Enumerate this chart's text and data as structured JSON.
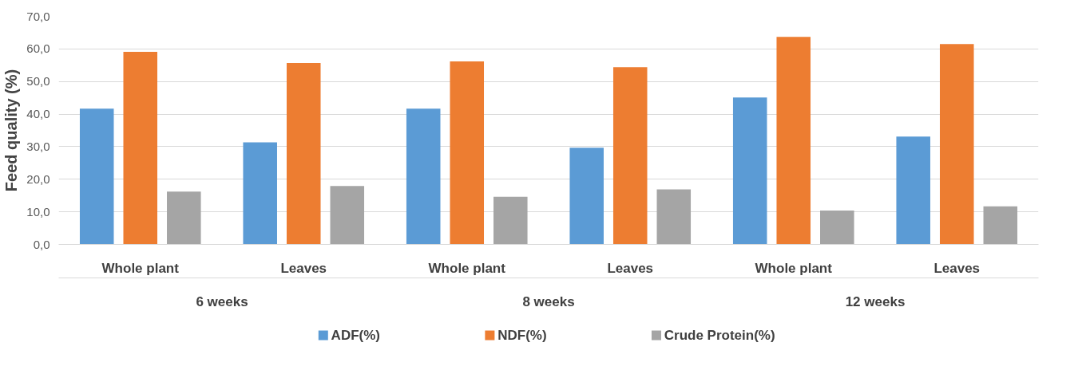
{
  "chart_data": {
    "type": "bar",
    "ylabel": "Feed quality (%)",
    "categories": [
      "Whole plant",
      "Leaves",
      "Whole plant",
      "Leaves",
      "Whole plant",
      "Leaves"
    ],
    "annotations": [
      "6 weeks",
      "8 weeks",
      "12 weeks"
    ],
    "series": [
      {
        "name": "ADF(%)",
        "color": "#5b9bd5",
        "values": [
          41.7,
          31.3,
          41.7,
          29.7,
          45.1,
          33.1
        ]
      },
      {
        "name": "NDF(%)",
        "color": "#ed7d31",
        "values": [
          59.1,
          55.7,
          56.2,
          54.4,
          63.7,
          61.5
        ]
      },
      {
        "name": "Crude Protein(%)",
        "color": "#a5a5a5",
        "values": [
          16.2,
          17.9,
          14.6,
          16.9,
          10.4,
          11.7
        ]
      }
    ],
    "ylim": [
      0,
      70
    ],
    "yticks": [
      {
        "value": 0,
        "label": "0,0"
      },
      {
        "value": 10,
        "label": "10,0"
      },
      {
        "value": 20,
        "label": "20,0"
      },
      {
        "value": 30,
        "label": "30,0"
      },
      {
        "value": 40,
        "label": "40,0"
      },
      {
        "value": 50,
        "label": "50,0"
      },
      {
        "value": 60,
        "label": "60,0"
      },
      {
        "value": 70,
        "label": "70,0"
      }
    ],
    "grid": "y",
    "legend": "bottom"
  }
}
